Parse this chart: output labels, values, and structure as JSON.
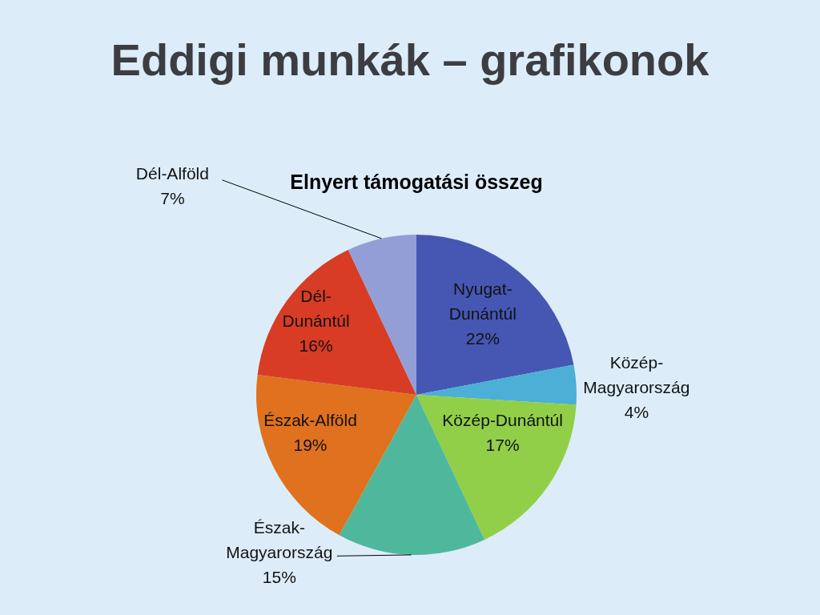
{
  "chart_data": {
    "type": "pie",
    "title": "Eddigi munkák – grafikonok",
    "subtitle": "Elnyert támogatási összeg",
    "categories": [
      "Nyugat-Dunántúl",
      "Közép-Magyarország",
      "Közép-Dunántúl",
      "Észak-Magyarország",
      "Észak-Alföld",
      "Dél-Dunántúl",
      "Dél-Alföld"
    ],
    "values": [
      22,
      4,
      17,
      15,
      19,
      16,
      7
    ],
    "value_labels": [
      "22%",
      "4%",
      "17%",
      "15%",
      "19%",
      "16%",
      "7%"
    ],
    "colors": [
      "#4557b3",
      "#4bafd6",
      "#92cf48",
      "#4fb89c",
      "#e0711e",
      "#d83c24",
      "#939ed6"
    ]
  }
}
